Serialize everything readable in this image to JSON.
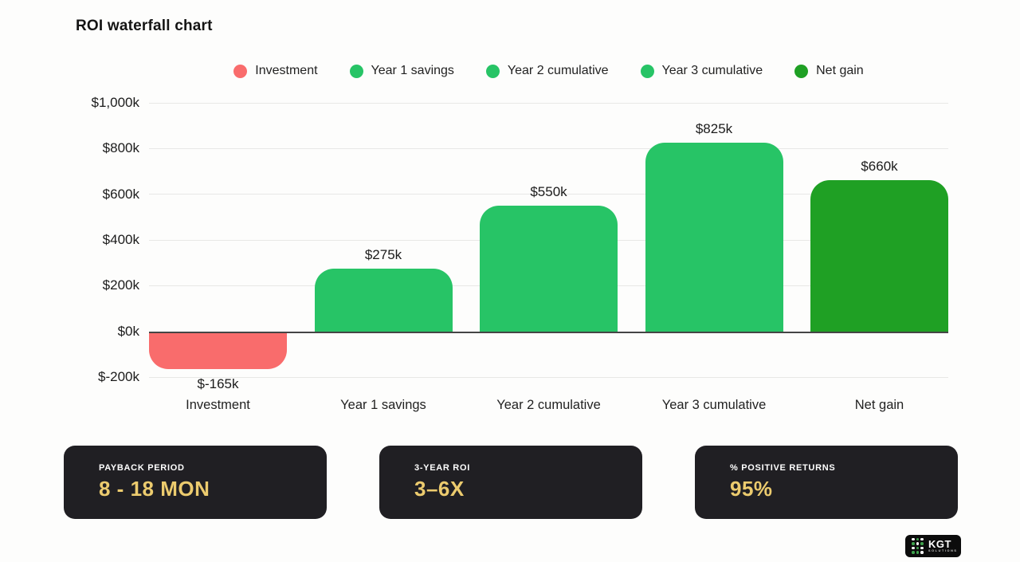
{
  "title": "ROI waterfall chart",
  "colors": {
    "investment_red": "#f96c6c",
    "savings_green": "#27c466",
    "net_gain_green": "#1fa024",
    "gold": "#eccb6e",
    "card_bg": "#201f23",
    "grid": "#e8e8e6",
    "zero_line": "#454545",
    "background": "#fdfdfc"
  },
  "chart_data": {
    "type": "bar",
    "title": "ROI waterfall chart",
    "categories": [
      "Investment",
      "Year 1 savings",
      "Year 2 cumulative",
      "Year 3 cumulative",
      "Net gain"
    ],
    "values": [
      -165,
      275,
      550,
      825,
      660
    ],
    "value_labels": [
      "$-165k",
      "$275k",
      "$550k",
      "$825k",
      "$660k"
    ],
    "bar_colors": [
      "#f96c6c",
      "#27c466",
      "#27c466",
      "#27c466",
      "#1fa024"
    ],
    "unit": "thousand USD",
    "ylim": [
      -200,
      1000
    ],
    "ytick_values": [
      1000,
      800,
      600,
      400,
      200,
      0,
      -200
    ],
    "ytick_labels": [
      "$1,000k",
      "$800k",
      "$600k",
      "$400k",
      "$200k",
      "$0k",
      "$-200k"
    ],
    "grid": true,
    "legend_position": "top",
    "legend": [
      {
        "label": "Investment",
        "color": "#f96c6c"
      },
      {
        "label": "Year 1 savings",
        "color": "#27c466"
      },
      {
        "label": "Year 2 cumulative",
        "color": "#27c466"
      },
      {
        "label": "Year 3 cumulative",
        "color": "#27c466"
      },
      {
        "label": "Net gain",
        "color": "#1fa024"
      }
    ]
  },
  "stat_cards": [
    {
      "label": "PAYBACK PERIOD",
      "value": "8 - 18 MON"
    },
    {
      "label": "3-YEAR ROI",
      "value": "3–6X"
    },
    {
      "label": "% POSITIVE RETURNS",
      "value": "95%"
    }
  ],
  "logo": {
    "text": "KGT",
    "subtext": "SOLUTIONS",
    "dot_colors": [
      "#ffffff",
      "#3fa34d",
      "#ffffff",
      "#3fa34d",
      "#ffffff",
      "#3fa34d",
      "#ffffff",
      "#3fa34d",
      "#ffffff",
      "#3fa34d",
      "#3fa34d",
      "#ffffff"
    ]
  }
}
